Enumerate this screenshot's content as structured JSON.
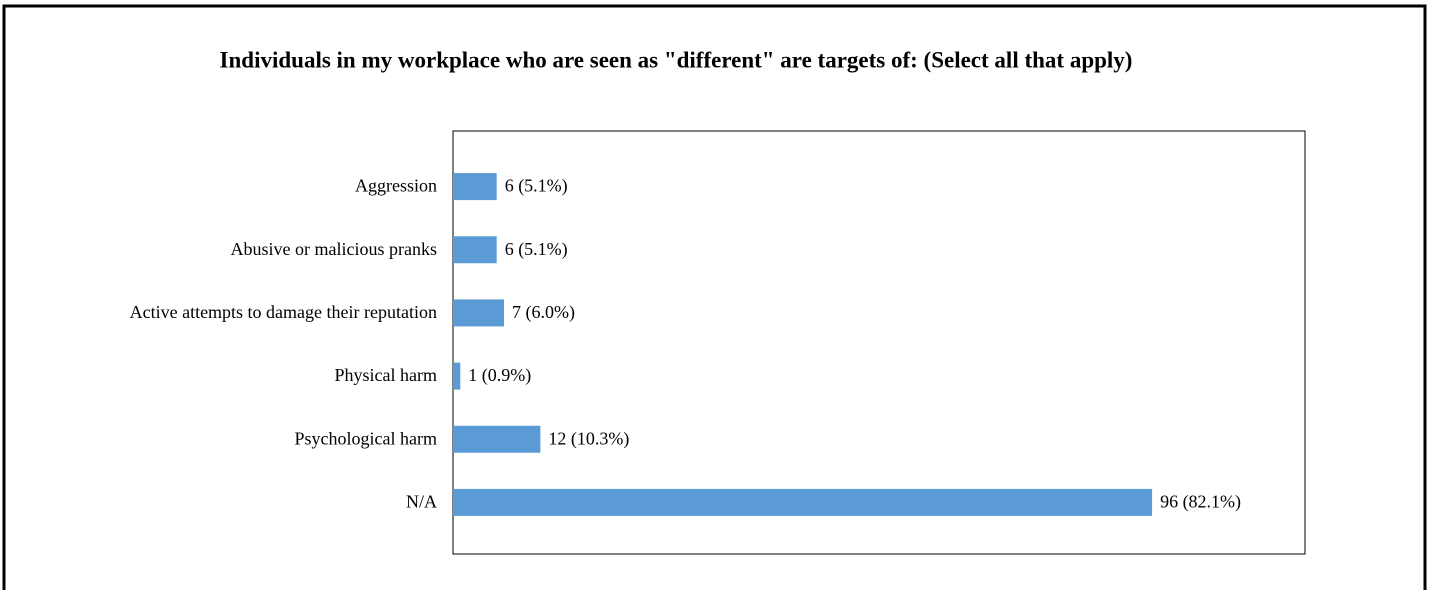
{
  "chart_data": {
    "type": "bar",
    "orientation": "horizontal",
    "title": "Individuals in my workplace who are seen as \"different\" are targets of: (Select all that apply)",
    "categories": [
      "Aggression",
      "Abusive or malicious pranks",
      "Active attempts to damage their reputation",
      "Physical harm",
      "Psychological harm",
      "N/A"
    ],
    "values": [
      6,
      6,
      7,
      1,
      12,
      96
    ],
    "value_labels": [
      "6 (5.1%)",
      "6 (5.1%)",
      "7 (6.0%)",
      "1 (0.9%)",
      "12 (10.3%)",
      "96 (82.1%)"
    ],
    "color": "#5b9bd5",
    "xlim": [
      0,
      117
    ]
  }
}
